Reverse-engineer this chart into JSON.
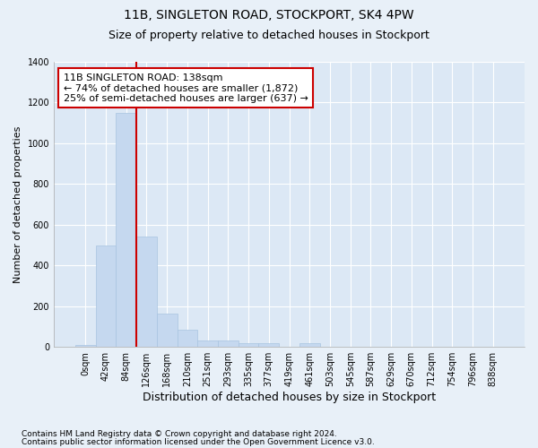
{
  "title": "11B, SINGLETON ROAD, STOCKPORT, SK4 4PW",
  "subtitle": "Size of property relative to detached houses in Stockport",
  "xlabel": "Distribution of detached houses by size in Stockport",
  "ylabel": "Number of detached properties",
  "footnote1": "Contains HM Land Registry data © Crown copyright and database right 2024.",
  "footnote2": "Contains public sector information licensed under the Open Government Licence v3.0.",
  "bar_labels": [
    "0sqm",
    "42sqm",
    "84sqm",
    "126sqm",
    "168sqm",
    "210sqm",
    "251sqm",
    "293sqm",
    "335sqm",
    "377sqm",
    "419sqm",
    "461sqm",
    "503sqm",
    "545sqm",
    "587sqm",
    "629sqm",
    "670sqm",
    "712sqm",
    "754sqm",
    "796sqm",
    "838sqm"
  ],
  "bar_heights": [
    10,
    500,
    1150,
    540,
    165,
    85,
    30,
    30,
    20,
    20,
    0,
    20,
    0,
    0,
    0,
    0,
    0,
    0,
    0,
    0,
    0
  ],
  "bar_color": "#c5d8ef",
  "bar_edgecolor": "#a8c4e0",
  "vline_color": "#cc0000",
  "annotation_line1": "11B SINGLETON ROAD: 138sqm",
  "annotation_line2": "← 74% of detached houses are smaller (1,872)",
  "annotation_line3": "25% of semi-detached houses are larger (637) →",
  "annotation_box_color": "#ffffff",
  "annotation_box_edgecolor": "#cc0000",
  "ylim": [
    0,
    1400
  ],
  "yticks": [
    0,
    200,
    400,
    600,
    800,
    1000,
    1200,
    1400
  ],
  "bg_color": "#e8f0f8",
  "plot_bg_color": "#dce8f5",
  "grid_color": "#ffffff",
  "title_fontsize": 10,
  "subtitle_fontsize": 9,
  "ylabel_fontsize": 8,
  "xlabel_fontsize": 9,
  "tick_fontsize": 7,
  "annotation_fontsize": 8,
  "footnote_fontsize": 6.5
}
